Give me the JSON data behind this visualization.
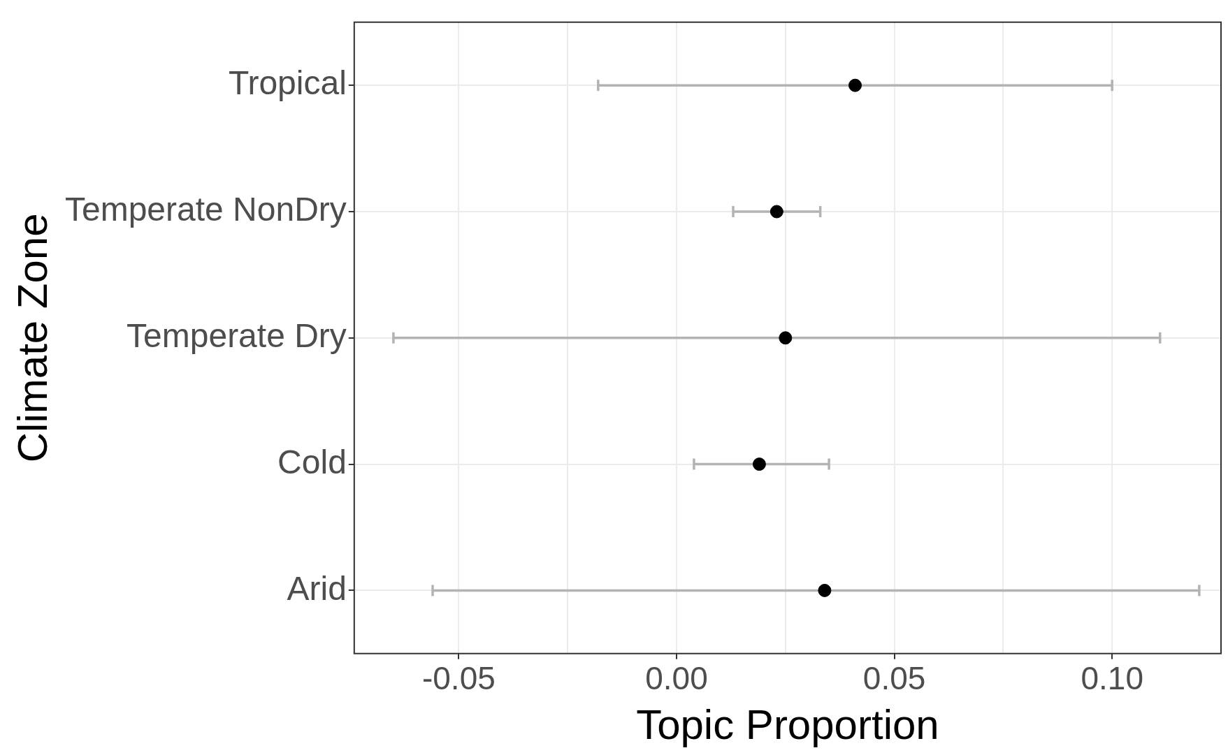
{
  "chart_data": {
    "type": "scatter",
    "orientation": "horizontal",
    "xlabel": "Topic Proportion",
    "ylabel": "Climate Zone",
    "categories": [
      "Tropical",
      "Temperate NonDry",
      "Temperate Dry",
      "Cold",
      "Arid"
    ],
    "values": [
      0.041,
      0.023,
      0.025,
      0.019,
      0.034
    ],
    "errors": [
      [
        -0.018,
        0.1
      ],
      [
        0.013,
        0.033
      ],
      [
        -0.065,
        0.111
      ],
      [
        0.004,
        0.035
      ],
      [
        -0.056,
        0.12
      ]
    ],
    "color": "#000000",
    "marker": "circle",
    "grid": true,
    "xlim": [
      -0.074,
      0.125
    ],
    "xticks": [
      -0.05,
      {
        "value": -0.025,
        "label": null
      },
      "0.00",
      {
        "value": 0.025,
        "label": null
      },
      0.05,
      {
        "value": 0.075,
        "label": null
      },
      "0.10",
      {
        "value": 0.125,
        "label": null
      }
    ]
  }
}
